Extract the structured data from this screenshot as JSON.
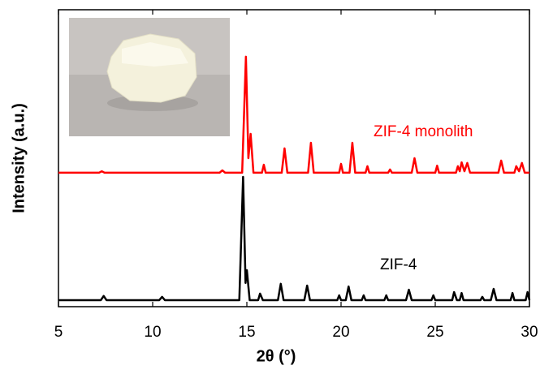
{
  "chart_data": {
    "type": "line",
    "xlabel": "2θ (°)",
    "ylabel": "Intensity (a.u.)",
    "xlim": [
      5,
      30
    ],
    "xticks": [
      5,
      10,
      15,
      20,
      25,
      30
    ],
    "ylim": [
      0,
      100
    ],
    "series": [
      {
        "name": "ZIF-4 monolith",
        "color": "#ff0000",
        "x": [
          5,
          7.15,
          7.3,
          7.45,
          13.55,
          13.7,
          13.85,
          14.75,
          14.95,
          15.08,
          15.2,
          15.35,
          15.8,
          15.9,
          16.0,
          16.85,
          17.0,
          17.15,
          18.25,
          18.4,
          18.55,
          19.9,
          20.0,
          20.1,
          20.45,
          20.6,
          20.75,
          21.3,
          21.4,
          21.5,
          22.5,
          22.6,
          22.7,
          23.75,
          23.9,
          24.05,
          25.0,
          25.1,
          25.2,
          26.1,
          26.2,
          26.3,
          26.4,
          26.55,
          26.7,
          26.85,
          28.35,
          28.5,
          28.65,
          29.2,
          29.3,
          29.45,
          29.6,
          29.75,
          30
        ],
        "values": [
          45.1,
          45.1,
          45.6,
          45.1,
          45.1,
          45.9,
          45.1,
          45.1,
          84.2,
          50,
          58.2,
          45.1,
          45.1,
          47.8,
          45.1,
          45.1,
          53.3,
          45.1,
          45.1,
          55.2,
          45.1,
          45.1,
          48.1,
          45.1,
          45.1,
          55.2,
          45.1,
          45.1,
          47.3,
          45.1,
          45.1,
          46.2,
          45.1,
          45.1,
          50.0,
          45.1,
          45.1,
          47.5,
          45.1,
          45.1,
          47.3,
          45.6,
          48.6,
          45.6,
          48.4,
          45.1,
          45.1,
          49.2,
          45.1,
          45.1,
          47.3,
          45.6,
          48.4,
          45.1,
          45.1
        ]
      },
      {
        "name": "ZIF-4",
        "color": "#000000",
        "x": [
          5,
          7.25,
          7.4,
          7.55,
          10.35,
          10.5,
          10.65,
          14.6,
          14.8,
          14.93,
          15.0,
          15.15,
          15.6,
          15.7,
          15.85,
          16.65,
          16.8,
          16.95,
          18.05,
          18.2,
          18.35,
          19.8,
          19.9,
          20.0,
          20.25,
          20.4,
          20.55,
          21.1,
          21.2,
          21.3,
          22.3,
          22.4,
          22.5,
          23.45,
          23.6,
          23.75,
          24.8,
          24.9,
          25.0,
          25.9,
          26.0,
          26.15,
          26.3,
          26.4,
          26.5,
          27.4,
          27.5,
          27.6,
          27.95,
          28.1,
          28.25,
          29.0,
          29.1,
          29.2,
          29.8,
          29.9,
          30
        ],
        "values": [
          2.2,
          2.2,
          3.6,
          2.2,
          2.2,
          3.3,
          2.2,
          2.2,
          43.7,
          8,
          12.3,
          2.2,
          2.2,
          4.4,
          2.2,
          2.2,
          7.7,
          2.2,
          2.2,
          7.1,
          2.2,
          2.2,
          3.8,
          2.2,
          2.2,
          6.8,
          2.2,
          2.2,
          3.8,
          2.2,
          2.2,
          3.8,
          2.2,
          2.2,
          5.7,
          2.2,
          2.2,
          3.8,
          2.2,
          2.2,
          4.9,
          2.2,
          2.2,
          4.6,
          2.2,
          2.2,
          3.3,
          2.2,
          2.2,
          6.0,
          2.2,
          2.2,
          4.6,
          2.2,
          2.2,
          4.9,
          2.2
        ]
      }
    ]
  }
}
